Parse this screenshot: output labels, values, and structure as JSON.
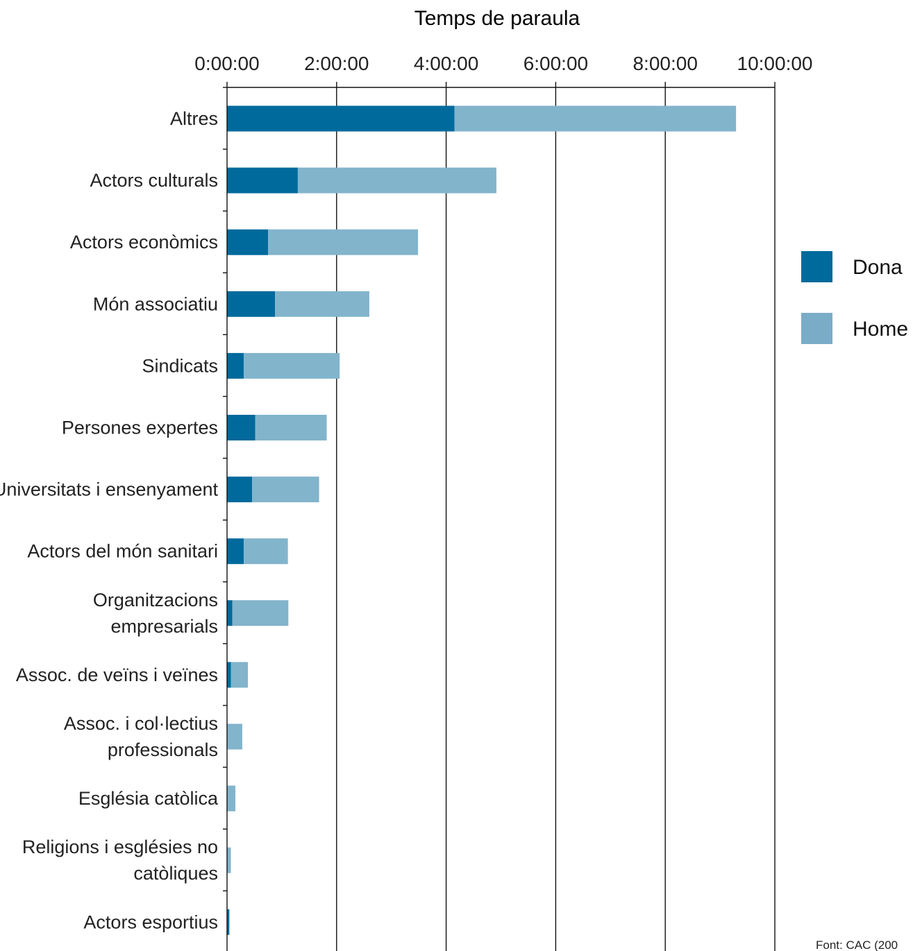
{
  "chart_data": {
    "type": "bar",
    "orientation": "horizontal",
    "stacked": true,
    "title": "Temps de paraula",
    "x_axis": {
      "position": "top",
      "range_seconds": [
        0,
        36000
      ],
      "tick_values_seconds": [
        0,
        7200,
        14400,
        21600,
        28800,
        36000
      ],
      "tick_labels": [
        "0:00:00",
        "2:00:00",
        "4:00:00",
        "6:00:00",
        "8:00:00",
        "10:00:00"
      ],
      "grid": true
    },
    "categories": [
      [
        "Altres"
      ],
      [
        "Actors culturals"
      ],
      [
        "Actors econòmics"
      ],
      [
        "Món associatiu"
      ],
      [
        "Sindicats"
      ],
      [
        "Persones expertes"
      ],
      [
        "Universitats i ensenyament"
      ],
      [
        "Actors del món sanitari"
      ],
      [
        "Organitzacions",
        "empresarials"
      ],
      [
        "Assoc. de veïns i veïnes"
      ],
      [
        "Assoc. i col·lectius",
        "professionals"
      ],
      [
        "Església catòlica"
      ],
      [
        "Religions i esglésies no",
        "catòliques"
      ],
      [
        "Actors esportius"
      ]
    ],
    "series": [
      {
        "name": "Dona",
        "color": "#006a9c",
        "values_seconds": [
          14950,
          4650,
          2700,
          3150,
          1100,
          1850,
          1650,
          1100,
          350,
          250,
          0,
          0,
          0,
          150
        ]
      },
      {
        "name": "Home",
        "color": "#82b4cc",
        "values_seconds": [
          18500,
          13050,
          9850,
          6200,
          6300,
          4700,
          4400,
          2900,
          3680,
          1120,
          1000,
          550,
          250,
          0
        ]
      }
    ],
    "legend": {
      "placement": "right",
      "entries": [
        {
          "label": "Dona",
          "color": "#006a9c"
        },
        {
          "label": "Home",
          "color": "#7aacc8"
        }
      ]
    },
    "source": "Font: CAC (200"
  }
}
